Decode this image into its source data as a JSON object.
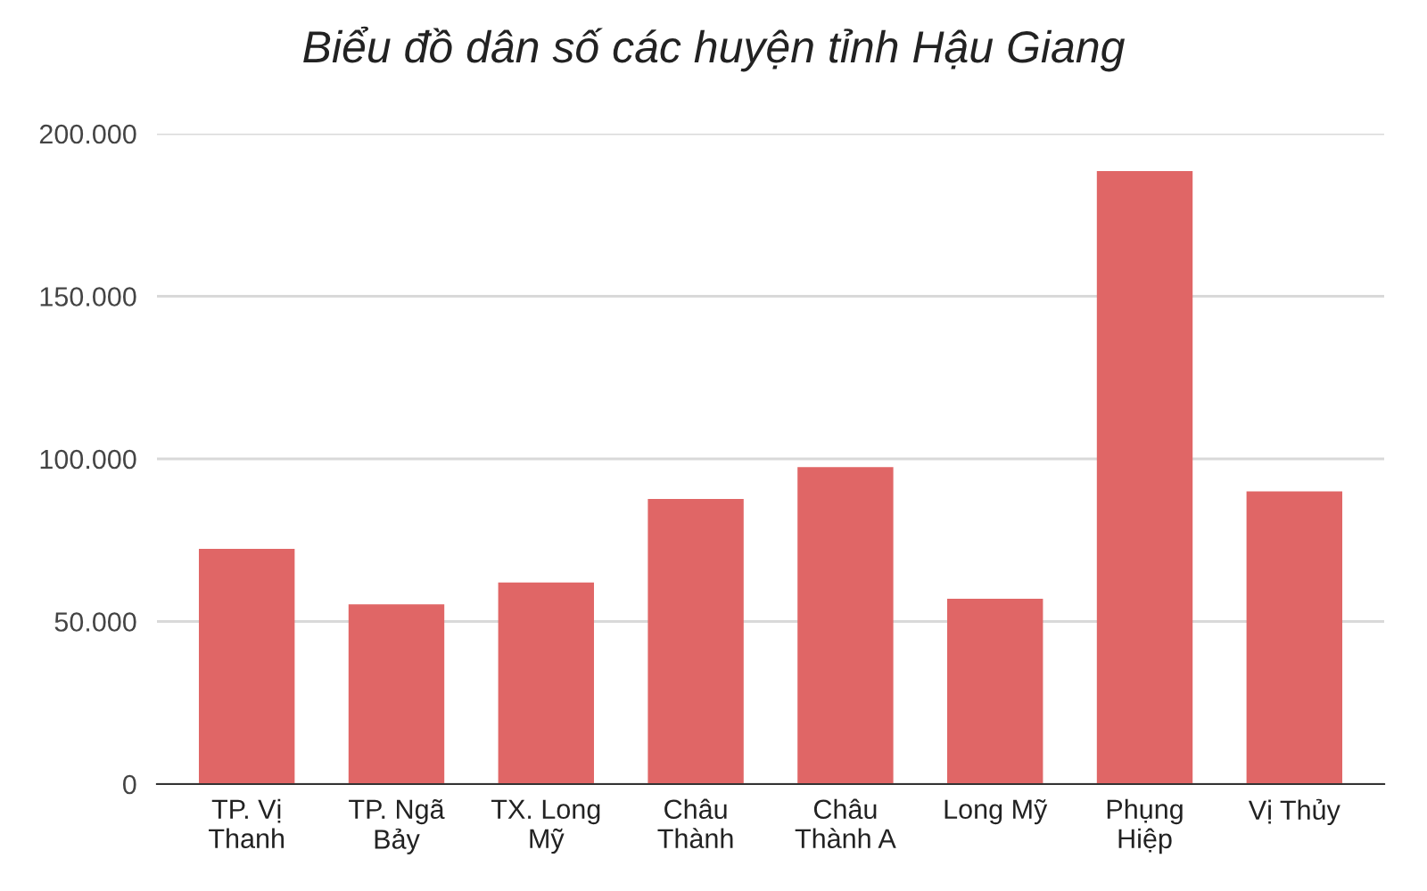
{
  "chart_data": {
    "type": "bar",
    "title": "Biểu đồ dân số các huyện tỉnh Hậu Giang",
    "categories": [
      "TP. Vị Thanh",
      "TP. Ngã Bảy",
      "TX. Long Mỹ",
      "Châu Thành",
      "Châu Thành A",
      "Long Mỹ",
      "Phụng Hiệp",
      "Vị Thủy"
    ],
    "values": [
      72300,
      55300,
      62000,
      87700,
      97500,
      57000,
      188500,
      90000
    ],
    "color": "#e06666",
    "ylim": [
      0,
      200000
    ],
    "yticks": [
      0,
      {
        "value": 50000,
        "label": "50.000"
      },
      {
        "value": 100000,
        "label": "100.000"
      },
      {
        "value": 150000,
        "label": "150.000"
      },
      {
        "value": 200000,
        "label": "200.000"
      }
    ],
    "grid": "y",
    "legend": false
  }
}
